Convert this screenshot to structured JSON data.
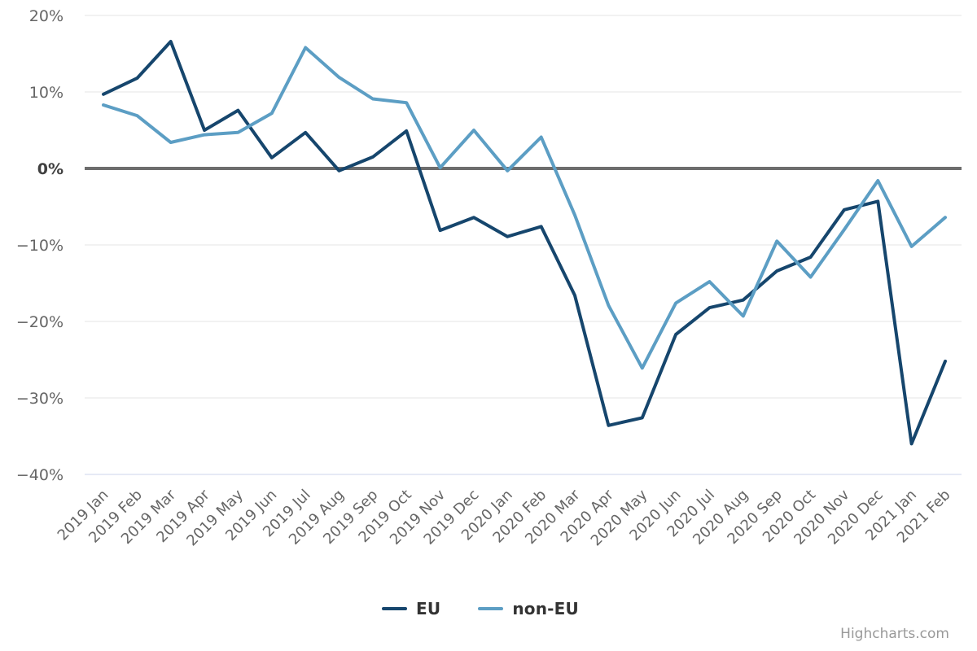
{
  "chart_data": {
    "type": "line",
    "title": "",
    "xlabel": "",
    "ylabel": "",
    "grid": true,
    "legend_position": "bottom",
    "ylim": [
      -40,
      20
    ],
    "yticks": [
      {
        "value": 20,
        "label": "20%"
      },
      {
        "value": 10,
        "label": "10%"
      },
      {
        "value": 0,
        "label": "0%"
      },
      {
        "value": -10,
        "label": "−10%"
      },
      {
        "value": -20,
        "label": "−20%"
      },
      {
        "value": -30,
        "label": "−30%"
      },
      {
        "value": -40,
        "label": "−40%"
      }
    ],
    "categories": [
      "2019 Jan",
      "2019 Feb",
      "2019 Mar",
      "2019 Apr",
      "2019 May",
      "2019 Jun",
      "2019 Jul",
      "2019 Aug",
      "2019 Sep",
      "2019 Oct",
      "2019 Nov",
      "2019 Dec",
      "2020 Jan",
      "2020 Feb",
      "2020 Mar",
      "2020 Apr",
      "2020 May",
      "2020 Jun",
      "2020 Jul",
      "2020 Aug",
      "2020 Sep",
      "2020 Oct",
      "2020 Nov",
      "2020 Dec",
      "2021 Jan",
      "2021 Feb"
    ],
    "series": [
      {
        "name": "EU",
        "color": "#16466d",
        "values": [
          9.7,
          11.8,
          16.6,
          5.0,
          7.6,
          1.4,
          4.7,
          -0.3,
          1.5,
          4.9,
          -8.1,
          -6.4,
          -8.9,
          -7.6,
          -16.6,
          -33.6,
          -32.6,
          -21.7,
          -18.2,
          -17.2,
          -13.4,
          -11.6,
          -5.4,
          -4.3,
          -36.0,
          -25.2
        ]
      },
      {
        "name": "non-EU",
        "color": "#5c9ec4",
        "values": [
          8.3,
          6.9,
          3.4,
          4.4,
          4.7,
          7.2,
          15.8,
          11.9,
          9.1,
          8.6,
          0.1,
          5.0,
          -0.3,
          4.1,
          -6.1,
          -17.9,
          -26.1,
          -17.6,
          -14.8,
          -19.3,
          -9.5,
          -14.2,
          -8.0,
          -1.6,
          -10.2,
          -6.4
        ]
      }
    ],
    "zero_line": true
  },
  "colors": {
    "grid": "#e6e6e6",
    "zero_line": "#6d6d6d",
    "axis_line": "#ccd6eb",
    "tick_label": "#666666",
    "zero_label": "#404040",
    "legend_text": "#333333",
    "credits_text": "#999999"
  },
  "credits": {
    "label": "Highcharts.com"
  }
}
